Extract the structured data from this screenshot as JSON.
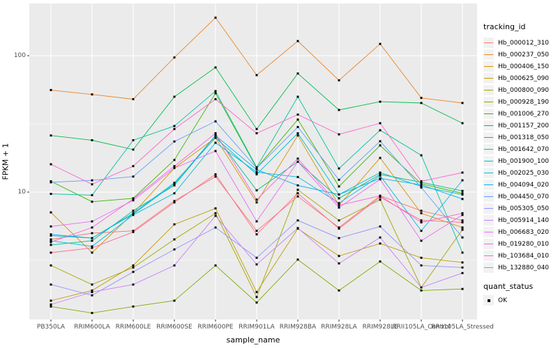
{
  "chart_data": {
    "type": "line",
    "title": "",
    "xlabel": "sample_name",
    "ylabel": "FPKM + 1",
    "yscale": "log10",
    "ylim": [
      1.18,
      241
    ],
    "grid": true,
    "panel_bg": "#EBEBEB",
    "grid_color": "#FFFFFF",
    "marker": "black-square",
    "y_ticks": [
      {
        "label": "100",
        "value": 100
      },
      {
        "label": "10",
        "value": 10
      }
    ],
    "y_minor_ticks": [
      31.62,
      3.162
    ],
    "categories": [
      "PB350LA",
      "RRIM600LA",
      "RRIM600LE",
      "RRIM600SE",
      "RRIM600PE",
      "RRIM901LA",
      "RRIM928BA",
      "RRIM928LA",
      "RRIM928LE",
      "RRII105LA_Control",
      "RRII105LA_Stressed"
    ],
    "legend_title": "tracking_id",
    "legend2": {
      "title": "quant_status",
      "items": [
        "OK"
      ]
    },
    "series": [
      {
        "name": "Hb_000012_310",
        "color": "#F8766D",
        "values": [
          4.5,
          5.0,
          5.2,
          8.6,
          13.0,
          5.2,
          9.3,
          5.5,
          9.4,
          7.3,
          6.2
        ]
      },
      {
        "name": "Hb_000237_050",
        "color": "#E88526",
        "values": [
          56,
          52,
          48,
          97,
          190,
          72,
          128,
          66,
          122,
          49,
          45
        ]
      },
      {
        "name": "Hb_000406_150",
        "color": "#D89000",
        "values": [
          7.1,
          3.6,
          7.0,
          15,
          25,
          8.4,
          26,
          8.0,
          17.8,
          7.0,
          5.5
        ]
      },
      {
        "name": "Hb_000625_090",
        "color": "#C09B00",
        "values": [
          1.6,
          1.9,
          2.9,
          5.8,
          7.6,
          1.85,
          5.4,
          3.4,
          4.2,
          3.3,
          3.05
        ]
      },
      {
        "name": "Hb_000800_090",
        "color": "#A3A500",
        "values": [
          2.9,
          2.1,
          2.8,
          4.5,
          7.0,
          1.7,
          10.4,
          6.2,
          8.8,
          2.0,
          5.3
        ]
      },
      {
        "name": "Hb_000928_190",
        "color": "#7CAE00",
        "values": [
          1.45,
          1.3,
          1.45,
          1.6,
          2.9,
          1.55,
          3.2,
          1.9,
          3.1,
          1.9,
          1.95
        ]
      },
      {
        "name": "Hb_001006_270",
        "color": "#39B600",
        "values": [
          12.0,
          8.5,
          9.0,
          17.2,
          53,
          15,
          34,
          11,
          22,
          11.5,
          9.8
        ]
      },
      {
        "name": "Hb_001157_200",
        "color": "#00BB4E",
        "values": [
          26,
          24,
          20.5,
          50,
          82,
          29,
          74,
          40,
          46,
          45,
          32
        ]
      },
      {
        "name": "Hb_001318_050",
        "color": "#00BF7D",
        "values": [
          4.1,
          4.4,
          7.3,
          11.2,
          26,
          10.3,
          16.7,
          9.0,
          13.5,
          11.8,
          10.2
        ]
      },
      {
        "name": "Hb_001642_070",
        "color": "#00C1A3",
        "values": [
          9.7,
          9.5,
          24,
          30.5,
          55,
          15.2,
          50,
          14.9,
          28.4,
          18.6,
          3.6
        ]
      },
      {
        "name": "Hb_001900_100",
        "color": "#00BFC4",
        "values": [
          4.8,
          4.6,
          7.0,
          11.7,
          25,
          13.5,
          27,
          9.6,
          13.9,
          11.0,
          9.6
        ]
      },
      {
        "name": "Hb_002025_030",
        "color": "#00BAE0",
        "values": [
          4.4,
          4.0,
          6.8,
          9.8,
          23,
          14.0,
          12.9,
          8.3,
          13.2,
          5.2,
          12.2
        ]
      },
      {
        "name": "Hb_004094_020",
        "color": "#00B0F6",
        "values": [
          4.9,
          4.6,
          6.9,
          11.5,
          26,
          14.6,
          11.2,
          9.6,
          12.6,
          11.3,
          8.9
        ]
      },
      {
        "name": "Hb_004450_070",
        "color": "#619CFF",
        "values": [
          11.8,
          12.2,
          13.0,
          23.5,
          33,
          15.0,
          30,
          12.3,
          23.6,
          10.8,
          4.65
        ]
      },
      {
        "name": "Hb_005305_050",
        "color": "#9590FF",
        "values": [
          2.1,
          1.75,
          2.6,
          3.8,
          5.5,
          3.3,
          6.2,
          4.6,
          5.6,
          2.9,
          2.8
        ]
      },
      {
        "name": "Hb_005914_140",
        "color": "#C77CFF",
        "values": [
          1.5,
          1.85,
          2.1,
          2.9,
          6.7,
          2.95,
          5.45,
          3.0,
          4.65,
          2.0,
          2.55
        ]
      },
      {
        "name": "Hb_006683_020",
        "color": "#E76BF3",
        "values": [
          5.6,
          6.1,
          8.7,
          15.0,
          20,
          6.1,
          16.7,
          7.7,
          12.4,
          4.4,
          6.8
        ]
      },
      {
        "name": "Hb_019280_010",
        "color": "#FA62DB",
        "values": [
          4.3,
          5.5,
          8.9,
          15.5,
          27,
          8.8,
          17.6,
          8.0,
          9.4,
          6.0,
          7.0
        ]
      },
      {
        "name": "Hb_103684_010",
        "color": "#FF61CC",
        "values": [
          16,
          11.4,
          15.5,
          29,
          48,
          27,
          37,
          26.5,
          32,
          12.0,
          13.9
        ]
      },
      {
        "name": "Hb_132880_040",
        "color": "#FF6A98",
        "values": [
          3.6,
          3.9,
          5.1,
          8.4,
          13.5,
          4.9,
          9.8,
          5.4,
          9.2,
          6.2,
          6.0
        ]
      }
    ]
  }
}
